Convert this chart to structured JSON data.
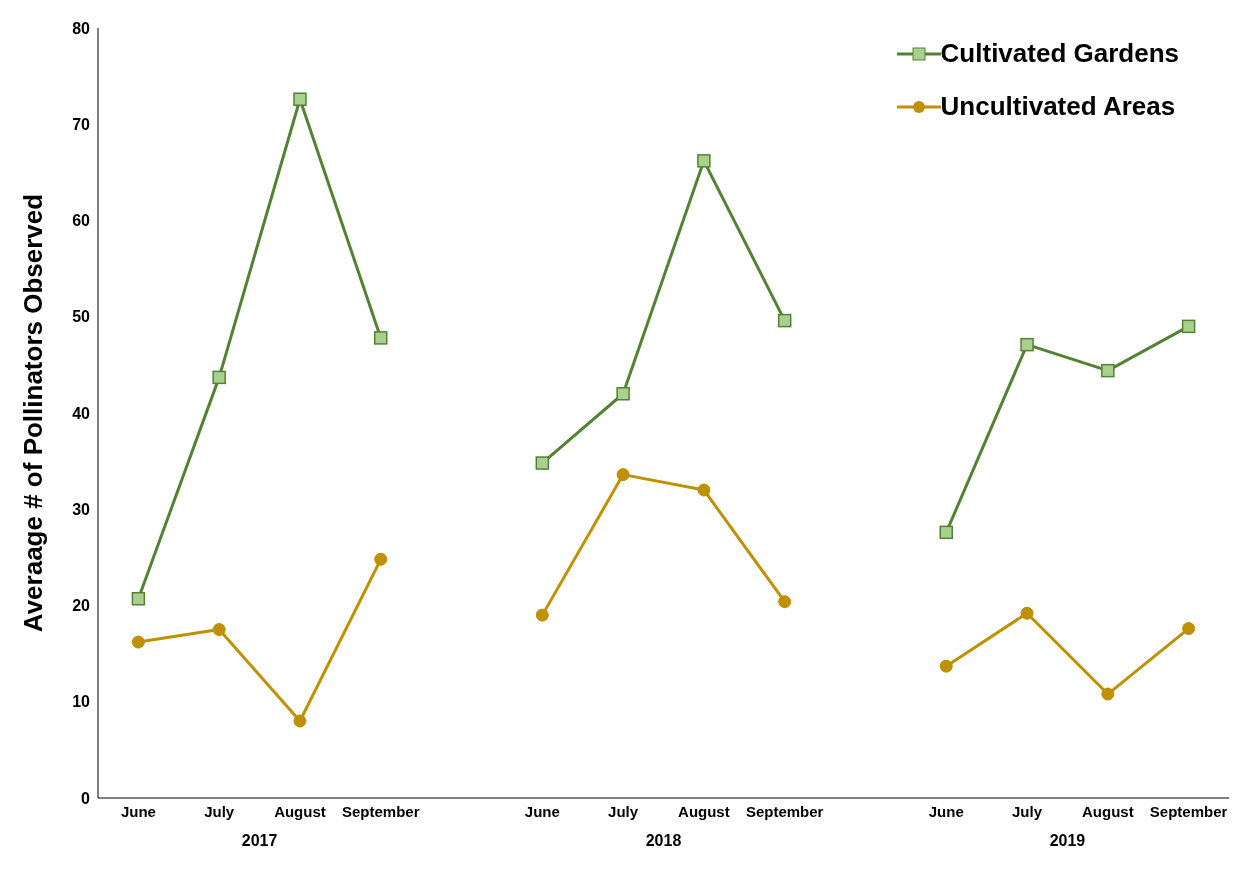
{
  "chart_data": {
    "type": "line",
    "ylabel": "Averaage # of Pollinators Observed",
    "categories": [
      "June",
      "July",
      "August",
      "September",
      null,
      "June",
      "July",
      "August",
      "September",
      null,
      "June",
      "July",
      "August",
      "September"
    ],
    "series": [
      {
        "name": "Cultivated Gardens",
        "color": "#548235",
        "marker": "square",
        "values": [
          20.7,
          43.7,
          72.6,
          47.8,
          null,
          34.8,
          42.0,
          66.2,
          49.6,
          null,
          27.6,
          47.1,
          44.4,
          49.0
        ]
      },
      {
        "name": "Uncultivated Areas",
        "color": "#bf9000",
        "marker": "circle",
        "values": [
          16.2,
          17.5,
          8.0,
          24.8,
          null,
          19.0,
          33.6,
          32.0,
          20.4,
          null,
          13.7,
          19.2,
          10.8,
          17.6
        ]
      }
    ],
    "annotations": [
      "2017",
      "2018",
      "2019"
    ],
    "ylim": [
      0,
      80
    ],
    "yticks": [
      0,
      10,
      20,
      30,
      40,
      50,
      60,
      70,
      80
    ],
    "grid": false,
    "legend": "top right"
  }
}
